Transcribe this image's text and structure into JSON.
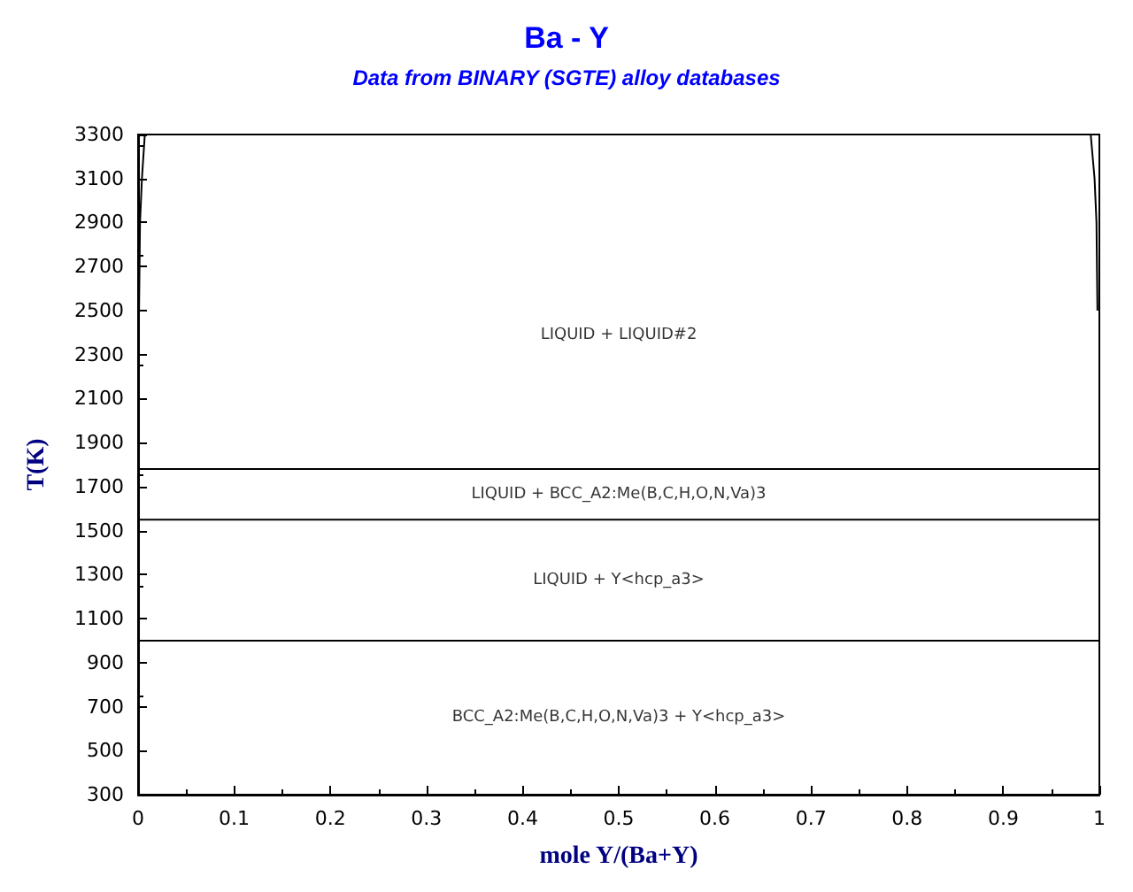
{
  "chart_data": {
    "type": "line",
    "title": "Ba - Y",
    "subtitle": "Data from BINARY (SGTE) alloy databases",
    "xlabel": "mole Y/(Ba+Y)",
    "ylabel": "T(K)",
    "xlim": [
      0,
      1
    ],
    "xticks": [
      0,
      0.1,
      0.2,
      0.3,
      0.4,
      0.5,
      0.6,
      0.7,
      0.8,
      0.9,
      1
    ],
    "ylim": [
      300,
      3300
    ],
    "yticks": [
      300,
      500,
      700,
      900,
      1100,
      1300,
      1500,
      1700,
      1900,
      2100,
      2300,
      2500,
      2700,
      2900,
      3100,
      3300
    ],
    "grid": false,
    "marker": "none",
    "line_style": "solid",
    "series": [
      {
        "color": "#000000",
        "x": [
          0,
          1
        ],
        "values": [
          1780,
          1780
        ]
      },
      {
        "color": "#000000",
        "x": [
          0,
          1
        ],
        "values": [
          1550,
          1550
        ]
      },
      {
        "color": "#000000",
        "x": [
          0,
          1
        ],
        "values": [
          1000,
          1000
        ]
      },
      {
        "color": "#000000",
        "x": [
          0.001,
          0.002,
          0.004,
          0.007
        ],
        "values": [
          2500,
          2900,
          3100,
          3300
        ]
      },
      {
        "color": "#000000",
        "x": [
          0.998,
          0.997,
          0.995,
          0.991
        ],
        "values": [
          2500,
          2900,
          3100,
          3300
        ]
      }
    ],
    "annotations": [
      "LIQUID + LIQUID#2",
      "LIQUID + BCC_A2:Me(B,C,H,O,N,Va)3",
      "LIQUID + Y<hcp_a3>",
      "BCC_A2:Me(B,C,H,O,N,Va)3 + Y<hcp_a3>"
    ]
  }
}
